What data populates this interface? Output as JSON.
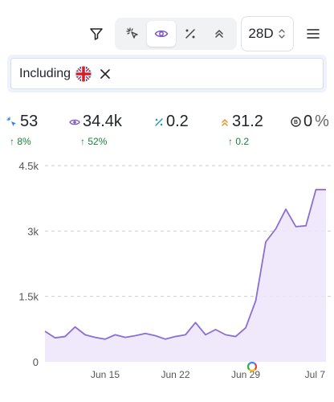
{
  "toolbar": {
    "range_label": "28D",
    "filter_icon": "filter-icon",
    "menu_icon": "hamburger-menu-icon",
    "segments": [
      {
        "icon": "click-sparkle-icon",
        "active": false
      },
      {
        "icon": "eye-icon",
        "active": true
      },
      {
        "icon": "percent-icon",
        "active": false
      },
      {
        "icon": "chevron-up-double-icon",
        "active": false
      }
    ]
  },
  "filter": {
    "label": "Including",
    "flag_icon": "uk-flag-icon",
    "close_icon": "close-icon"
  },
  "stats": [
    {
      "icon": "clicks-icon",
      "value": "53",
      "delta": "8%",
      "color": "#2f80ed"
    },
    {
      "icon": "eye-icon",
      "value": "34.4k",
      "delta": "52%",
      "color": "#7e57c2"
    },
    {
      "icon": "ctr-percent-icon",
      "value": "0.2",
      "delta": "0.2",
      "color": "#1e9aa8"
    },
    {
      "icon": "position-icon",
      "value": "31.2",
      "delta": "0.2",
      "color": "#e0982a"
    },
    {
      "icon": "score-icon",
      "value": "0",
      "suffix": "%",
      "delta": "",
      "color": "#333333"
    }
  ],
  "colors": {
    "line": "#8a6fd1",
    "fill": "#ede7fb",
    "positive": "#1a7f37"
  },
  "chart_data": {
    "type": "area",
    "x": [
      "Jun 9",
      "Jun 10",
      "Jun 11",
      "Jun 12",
      "Jun 13",
      "Jun 14",
      "Jun 15",
      "Jun 16",
      "Jun 17",
      "Jun 18",
      "Jun 19",
      "Jun 20",
      "Jun 21",
      "Jun 22",
      "Jun 23",
      "Jun 24",
      "Jun 25",
      "Jun 26",
      "Jun 27",
      "Jun 28",
      "Jun 29",
      "Jun 30",
      "Jul 1",
      "Jul 2",
      "Jul 3",
      "Jul 4",
      "Jul 5",
      "Jul 6",
      "Jul 7"
    ],
    "values": [
      700,
      550,
      580,
      800,
      620,
      560,
      520,
      620,
      560,
      600,
      650,
      600,
      520,
      580,
      620,
      900,
      620,
      740,
      620,
      580,
      780,
      1400,
      2750,
      3050,
      3500,
      3100,
      3120,
      3950,
      3950
    ],
    "x_ticks": [
      "Jun 15",
      "Jun 22",
      "Jun 29",
      "Jul 7"
    ],
    "y_ticks": [
      "0",
      "1.5k",
      "3k",
      "4.5k"
    ],
    "ylim": [
      0,
      4500
    ],
    "grid": true,
    "annotation_icon": "google-icon"
  }
}
